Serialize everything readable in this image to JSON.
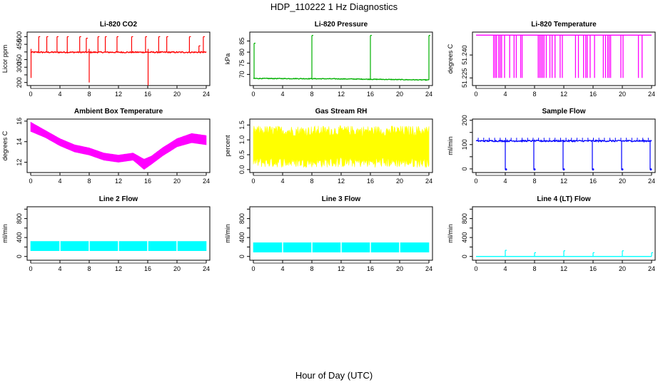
{
  "title": "HDP_110222  1 Hz Diagnostics",
  "xlabel": "Hour of Day (UTC)",
  "x_ticks": [
    0,
    4,
    8,
    12,
    16,
    20,
    24
  ],
  "chart_data": [
    {
      "type": "line",
      "title": "Li-820 CO2",
      "ylabel": "Licor ppm",
      "color": "#ff0000",
      "xlim": [
        0,
        24
      ],
      "ylim": [
        180,
        530
      ],
      "yticks": [
        200,
        250,
        300,
        350,
        400,
        450,
        500
      ],
      "ytick_labels": [
        "200",
        "",
        "300",
        "350",
        "",
        "450",
        "500"
      ],
      "baseline": 398,
      "noise": 4,
      "spikes": [
        {
          "x": 0.05,
          "low": 230,
          "high": 420
        },
        {
          "x": 1.1,
          "high": 500
        },
        {
          "x": 2.2,
          "high": 500
        },
        {
          "x": 3.6,
          "high": 500
        },
        {
          "x": 5.0,
          "high": 500
        },
        {
          "x": 6.7,
          "high": 500
        },
        {
          "x": 7.6,
          "high": 490
        },
        {
          "x": 8.0,
          "low": 200,
          "high": 420
        },
        {
          "x": 9.2,
          "high": 500
        },
        {
          "x": 10.2,
          "high": 500
        },
        {
          "x": 11.8,
          "high": 500
        },
        {
          "x": 13.8,
          "high": 500
        },
        {
          "x": 15.7,
          "high": 500
        },
        {
          "x": 16.05,
          "low": 180,
          "high": 420
        },
        {
          "x": 17.5,
          "high": 500
        },
        {
          "x": 18.6,
          "high": 500
        },
        {
          "x": 21.7,
          "high": 500
        },
        {
          "x": 23.0,
          "high": 440
        },
        {
          "x": 23.6,
          "high": 500
        }
      ]
    },
    {
      "type": "line",
      "title": "Li-820 Pressure",
      "ylabel": "kPa",
      "color": "#00b000",
      "xlim": [
        0,
        24
      ],
      "ylim": [
        65,
        89
      ],
      "yticks": [
        70,
        75,
        80,
        85
      ],
      "ytick_labels": [
        "70",
        "75",
        "80",
        "85"
      ],
      "trend": [
        [
          0,
          68.2
        ],
        [
          12,
          68.0
        ],
        [
          24,
          67.5
        ]
      ],
      "noise": 0.15,
      "spikes": [
        {
          "x": 0.1,
          "high": 84
        },
        {
          "x": 8.0,
          "high": 87.5
        },
        {
          "x": 16.0,
          "high": 87.5
        },
        {
          "x": 24.0,
          "high": 87.5
        }
      ]
    },
    {
      "type": "line",
      "title": "Li-820 Temperature",
      "ylabel": "degrees C",
      "color": "#ff00ff",
      "xlim": [
        0,
        24
      ],
      "ylim": [
        51.22,
        51.255
      ],
      "yticks": [
        51.225,
        51.24
      ],
      "ytick_labels": [
        "51.225",
        "51.240"
      ],
      "baseline": 51.253,
      "drop_value": 51.225,
      "drops": [
        2.4,
        2.6,
        2.8,
        3.1,
        3.3,
        3.5,
        3.9,
        4.6,
        5.2,
        5.5,
        6.1,
        6.3,
        8.5,
        8.7,
        8.9,
        9.1,
        9.3,
        9.6,
        10.1,
        10.4,
        10.8,
        11.5,
        11.8,
        13.6,
        14.0,
        14.7,
        15.0,
        15.2,
        15.6,
        16.2,
        17.4,
        17.7,
        18.0,
        18.2,
        18.4,
        19.8,
        20.1,
        22.2,
        22.7
      ]
    },
    {
      "type": "area",
      "title": "Ambient Box Temperature",
      "ylabel": "degrees C",
      "color": "#ff00ff",
      "xlim": [
        0,
        24
      ],
      "ylim": [
        11,
        16.2
      ],
      "yticks": [
        12,
        14,
        16
      ],
      "ytick_labels": [
        "12",
        "14",
        "16"
      ],
      "upper": [
        [
          0,
          15.9
        ],
        [
          2,
          15.1
        ],
        [
          4,
          14.3
        ],
        [
          6,
          13.7
        ],
        [
          8,
          13.4
        ],
        [
          10,
          12.9
        ],
        [
          12,
          12.7
        ],
        [
          14,
          12.9
        ],
        [
          15.5,
          12.3
        ],
        [
          16.5,
          12.6
        ],
        [
          18,
          13.4
        ],
        [
          20,
          14.3
        ],
        [
          22,
          14.8
        ],
        [
          24,
          14.6
        ]
      ],
      "lower": [
        [
          0,
          15.0
        ],
        [
          2,
          14.4
        ],
        [
          4,
          13.6
        ],
        [
          6,
          13.0
        ],
        [
          8,
          12.7
        ],
        [
          10,
          12.2
        ],
        [
          12,
          12.0
        ],
        [
          14,
          12.2
        ],
        [
          15.5,
          11.3
        ],
        [
          16.5,
          11.8
        ],
        [
          18,
          12.6
        ],
        [
          20,
          13.5
        ],
        [
          22,
          13.9
        ],
        [
          24,
          13.7
        ]
      ]
    },
    {
      "type": "area",
      "title": "Gas Stream RH",
      "ylabel": "percent",
      "color": "#ffff00",
      "xlim": [
        0,
        24
      ],
      "ylim": [
        -0.1,
        1.7
      ],
      "yticks": [
        0.0,
        0.5,
        1.0,
        1.5
      ],
      "ytick_labels": [
        "0.0",
        "0.5",
        "1.0",
        "1.5"
      ],
      "upper": [
        [
          0,
          1.3
        ],
        [
          24,
          1.3
        ]
      ],
      "lower": [
        [
          0,
          0.25
        ],
        [
          24,
          0.25
        ]
      ],
      "jitter": 0.18
    },
    {
      "type": "line",
      "title": "Sample Flow",
      "ylabel": "ml/min",
      "color": "#0000ff",
      "xlim": [
        0,
        24
      ],
      "ylim": [
        -15,
        205
      ],
      "yticks": [
        0,
        50,
        100,
        150,
        200
      ],
      "ytick_labels": [
        "0",
        "",
        "100",
        "",
        "200"
      ],
      "baseline": 115,
      "noise": 3,
      "ticks_high": 128,
      "dips": [
        {
          "x": 4.0,
          "low": -2
        },
        {
          "x": 7.9,
          "low": -2
        },
        {
          "x": 11.9,
          "low": -2
        },
        {
          "x": 15.9,
          "low": -2
        },
        {
          "x": 19.9,
          "low": -2
        },
        {
          "x": 23.8,
          "low": -2
        }
      ]
    },
    {
      "type": "area",
      "title": "Line 2 Flow",
      "ylabel": "ml/min",
      "color": "#00ffff",
      "xlim": [
        0,
        24
      ],
      "ylim": [
        -80,
        1050
      ],
      "yticks": [
        0,
        200,
        400,
        600,
        800,
        1000
      ],
      "ytick_labels": [
        "0",
        "",
        "400",
        "",
        "800",
        ""
      ],
      "upper": [
        [
          0,
          320
        ],
        [
          24,
          320
        ]
      ],
      "lower": [
        [
          0,
          120
        ],
        [
          24,
          120
        ]
      ],
      "gaps": [
        4.0,
        8.0,
        12.0,
        16.0,
        20.0
      ]
    },
    {
      "type": "area",
      "title": "Line 3 Flow",
      "ylabel": "ml/min",
      "color": "#00ffff",
      "xlim": [
        0,
        24
      ],
      "ylim": [
        -80,
        1050
      ],
      "yticks": [
        0,
        200,
        400,
        600,
        800,
        1000
      ],
      "ytick_labels": [
        "0",
        "",
        "400",
        "",
        "800",
        ""
      ],
      "upper": [
        [
          0,
          290
        ],
        [
          24,
          290
        ]
      ],
      "lower": [
        [
          0,
          90
        ],
        [
          24,
          90
        ]
      ],
      "gaps": [
        4.0,
        8.0,
        12.0,
        16.0,
        20.0
      ]
    },
    {
      "type": "line",
      "title": "Line 4 (LT) Flow",
      "ylabel": "ml/min",
      "color": "#00ffff",
      "xlim": [
        0,
        24
      ],
      "ylim": [
        -80,
        1050
      ],
      "yticks": [
        0,
        200,
        400,
        600,
        800,
        1000
      ],
      "ytick_labels": [
        "0",
        "",
        "400",
        "",
        "800",
        ""
      ],
      "baseline": 0,
      "spikes": [
        {
          "x": 4.0,
          "high": 130
        },
        {
          "x": 8.0,
          "high": 80
        },
        {
          "x": 12.0,
          "high": 120
        },
        {
          "x": 16.0,
          "high": 80
        },
        {
          "x": 20.0,
          "high": 120
        },
        {
          "x": 24.0,
          "high": 80
        }
      ]
    }
  ]
}
